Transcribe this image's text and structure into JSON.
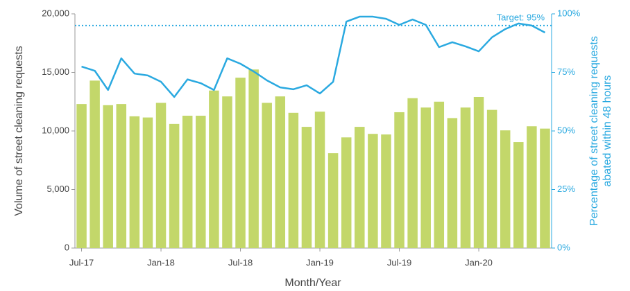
{
  "chart_data": {
    "type": "bar_line",
    "x_label": "Month/Year",
    "y_label": "Volume of street cleaning requests",
    "y2_label": [
      "Percentage of street cleaning requests",
      "abated within 48 hours"
    ],
    "categories": [
      "Jul-17",
      null,
      null,
      null,
      null,
      null,
      "Jan-18",
      null,
      null,
      null,
      null,
      null,
      "Jul-18",
      null,
      null,
      null,
      null,
      null,
      "Jan-19",
      null,
      null,
      null,
      null,
      null,
      "Jul-19",
      null,
      null,
      null,
      null,
      null,
      "Jan-20",
      null,
      null,
      null,
      null,
      null
    ],
    "series": [
      {
        "name": "Volume of street cleaning requests",
        "type": "bar",
        "color": "#c3d76a",
        "values": [
          12300,
          14300,
          12200,
          12300,
          11250,
          11150,
          12400,
          10600,
          11300,
          11300,
          13450,
          12950,
          14550,
          15250,
          12400,
          12950,
          11550,
          10350,
          11650,
          8100,
          9450,
          10350,
          9750,
          9700,
          11600,
          12800,
          12000,
          12500,
          11100,
          12000,
          12900,
          11800,
          10050,
          9050,
          10400,
          10200
        ]
      },
      {
        "name": "Percentage abated within 48 hours",
        "type": "line",
        "axis": "y2",
        "color": "#2aa9e0",
        "values": [
          77.5,
          75.7,
          67.5,
          81,
          74.5,
          73.7,
          71,
          64.5,
          72,
          70.4,
          67.5,
          81,
          78.7,
          75.4,
          71.6,
          68.6,
          67.8,
          69.5,
          66,
          71,
          96.7,
          98.8,
          98.8,
          97.9,
          95.3,
          97.6,
          95.3,
          85.8,
          87.9,
          86.1,
          84,
          90,
          93.5,
          95.9,
          95,
          92
        ]
      }
    ],
    "target": {
      "value": 95,
      "label": "Target: 95%"
    },
    "ylim": [
      0,
      20000
    ],
    "yticks": [
      0,
      {
        "value": 5000,
        "label": "5,000"
      },
      {
        "value": 10000,
        "label": "10,000"
      },
      {
        "value": 15000,
        "label": "15,000"
      },
      {
        "value": 20000,
        "label": "20,000"
      }
    ],
    "y2lim": [
      0,
      100
    ],
    "y2ticks": [
      {
        "value": 0,
        "label": "0%"
      },
      {
        "value": 25,
        "label": "25%"
      },
      {
        "value": 50,
        "label": "50%"
      },
      {
        "value": 75,
        "label": "75%"
      },
      {
        "value": 100,
        "label": "100%"
      }
    ]
  }
}
